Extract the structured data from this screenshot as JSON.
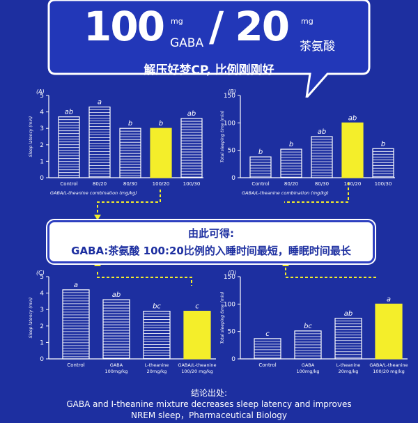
{
  "header": {
    "num1": "100",
    "unit1": "mg",
    "gaba": "GABA",
    "num2": "/ 20",
    "unit2": "mg",
    "theanine": "茶氨酸",
    "subtitle": "解压好梦CP, 比例刚刚好"
  },
  "conclusion": {
    "line1": "由此可得:",
    "line2": "GABA:茶氨酸 100:20比例的入睡时间最短，睡眠时间最长"
  },
  "footer": {
    "label": "结论出处:",
    "line1": "GABA and I-theanine mixture decreases sleep latency and improves",
    "line2": "NREM sleep，Pharmaceutical Biology"
  },
  "colors": {
    "background": "#1d2fa0",
    "bar": "#ffffff",
    "highlight": "#f4ee2a",
    "arrow": "#f4ee2a"
  },
  "chart_data": [
    {
      "id": "A",
      "panel_label": "(A)",
      "type": "bar",
      "ylabel": "Sleep latency (min)",
      "xlabel": "GABA/L-theanine combination (mg/kg)",
      "categories": [
        "Control",
        "80/20",
        "80/30",
        "100/20",
        "100/30"
      ],
      "values": [
        3.7,
        4.3,
        3.0,
        3.0,
        3.6
      ],
      "letters": [
        "ab",
        "a",
        "b",
        "b",
        "ab"
      ],
      "highlight_index": 3,
      "ylim": [
        0,
        5
      ],
      "yticks": [
        0,
        1,
        2,
        3,
        4,
        5
      ]
    },
    {
      "id": "B",
      "panel_label": "(B)",
      "type": "bar",
      "ylabel": "Total sleeping time (min)",
      "xlabel": "GABA/L-theanine combination (mg/kg)",
      "categories": [
        "Control",
        "80/20",
        "80/30",
        "100/20",
        "100/30"
      ],
      "values": [
        38,
        52,
        75,
        100,
        53
      ],
      "letters": [
        "b",
        "b",
        "ab",
        "ab",
        "b"
      ],
      "highlight_index": 3,
      "ylim": [
        0,
        150
      ],
      "yticks": [
        0,
        50,
        100,
        150
      ]
    },
    {
      "id": "C",
      "panel_label": "(C)",
      "type": "bar",
      "ylabel": "Sleep latency (min)",
      "xlabel": "",
      "categories": [
        "Control",
        "GABA 100mg/kg",
        "L-theanine 20mg/kg",
        "GABA/L-theanine 100/20 mg/kg"
      ],
      "values": [
        4.2,
        3.6,
        2.9,
        2.9
      ],
      "letters": [
        "a",
        "ab",
        "bc",
        "c"
      ],
      "highlight_index": 3,
      "ylim": [
        0,
        5
      ],
      "yticks": [
        0,
        1,
        2,
        3,
        4,
        5
      ]
    },
    {
      "id": "D",
      "panel_label": "(D)",
      "type": "bar",
      "ylabel": "Total sleeping time (min)",
      "xlabel": "",
      "categories": [
        "Control",
        "GABA 100mg/kg",
        "L-theanine 20mg/kg",
        "GABA/L-theanine 100/20 mg/kg"
      ],
      "values": [
        37,
        51,
        74,
        100
      ],
      "letters": [
        "c",
        "bc",
        "ab",
        "a"
      ],
      "highlight_index": 3,
      "ylim": [
        0,
        150
      ],
      "yticks": [
        0,
        50,
        100,
        150
      ]
    }
  ]
}
